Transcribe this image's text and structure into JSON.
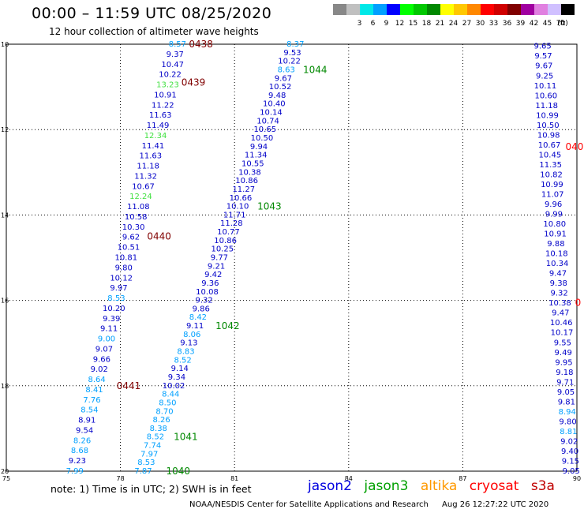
{
  "header": {
    "title": "00:00 – 11:59 UTC 08/25/2020",
    "subtitle": "12 hour collection of altimeter wave heights"
  },
  "color_scale": {
    "unit": "(ft)",
    "bins": [
      {
        "label": "",
        "color": "#888888"
      },
      {
        "label": "3",
        "color": "#c0c0c0"
      },
      {
        "label": "6",
        "color": "#00e8e8"
      },
      {
        "label": "9",
        "color": "#00a0ff"
      },
      {
        "label": "12",
        "color": "#0000ff"
      },
      {
        "label": "15",
        "color": "#00ff00"
      },
      {
        "label": "18",
        "color": "#00c800"
      },
      {
        "label": "21",
        "color": "#008800"
      },
      {
        "label": "24",
        "color": "#ffff00"
      },
      {
        "label": "27",
        "color": "#ffc800"
      },
      {
        "label": "30",
        "color": "#ff8800"
      },
      {
        "label": "33",
        "color": "#ff0000"
      },
      {
        "label": "36",
        "color": "#d00000"
      },
      {
        "label": "39",
        "color": "#800000"
      },
      {
        "label": "42",
        "color": "#a000a0"
      },
      {
        "label": "45",
        "color": "#e080e0"
      },
      {
        "label": "70",
        "color": "#d0c0ff"
      },
      {
        "label": "",
        "color": "#000000"
      }
    ]
  },
  "map": {
    "lon_ticks": [
      "75",
      "78",
      "81",
      "84",
      "87",
      "90"
    ],
    "lat_ticks": [
      "10",
      "12",
      "14",
      "16",
      "18",
      "20"
    ],
    "lon_range": [
      75,
      90
    ],
    "lat_range": [
      10,
      20
    ]
  },
  "passes": [
    {
      "id": "0438",
      "lon": 79.8,
      "lat": 10.0,
      "color": "#800000"
    },
    {
      "id": "0439",
      "lon": 79.6,
      "lat": 10.9,
      "color": "#800000"
    },
    {
      "id": "0440",
      "lon": 78.7,
      "lat": 14.5,
      "color": "#800000"
    },
    {
      "id": "0441",
      "lon": 77.9,
      "lat": 18.0,
      "color": "#800000"
    },
    {
      "id": "1044",
      "lon": 82.8,
      "lat": 10.6,
      "color": "#008800"
    },
    {
      "id": "1043",
      "lon": 81.6,
      "lat": 13.8,
      "color": "#008800"
    },
    {
      "id": "1042",
      "lon": 80.5,
      "lat": 16.6,
      "color": "#008800"
    },
    {
      "id": "1041",
      "lon": 79.4,
      "lat": 19.2,
      "color": "#008800"
    },
    {
      "id": "1040",
      "lon": 79.2,
      "lat": 20.0,
      "color": "#008800"
    },
    {
      "id": "040",
      "lon": 89.7,
      "lat": 12.4,
      "color": "#ff0000"
    },
    {
      "id": "0",
      "lon": 89.95,
      "lat": 16.05,
      "color": "#ff0000"
    }
  ],
  "tracks": [
    {
      "name": "track-0438-0441",
      "start": {
        "lon": 79.5,
        "lat": 10.0
      },
      "end": {
        "lon": 76.8,
        "lat": 20.0
      },
      "points": [
        {
          "v": "8.57",
          "c": "#00a0ff"
        },
        {
          "v": "9.37",
          "c": "#0000c8"
        },
        {
          "v": "10.47",
          "c": "#0000c8"
        },
        {
          "v": "10.22",
          "c": "#0000c8"
        },
        {
          "v": "13.23",
          "c": "#40e040"
        },
        {
          "v": "10.91",
          "c": "#0000c8"
        },
        {
          "v": "11.22",
          "c": "#0000c8"
        },
        {
          "v": "11.63",
          "c": "#0000c8"
        },
        {
          "v": "11.49",
          "c": "#0000c8"
        },
        {
          "v": "12.34",
          "c": "#40e040"
        },
        {
          "v": "11.41",
          "c": "#0000c8"
        },
        {
          "v": "11.63",
          "c": "#0000c8"
        },
        {
          "v": "11.18",
          "c": "#0000c8"
        },
        {
          "v": "11.32",
          "c": "#0000c8"
        },
        {
          "v": "10.67",
          "c": "#0000c8"
        },
        {
          "v": "12.24",
          "c": "#40e040"
        },
        {
          "v": "11.08",
          "c": "#0000c8"
        },
        {
          "v": "10.58",
          "c": "#0000c8"
        },
        {
          "v": "10.30",
          "c": "#0000c8"
        },
        {
          "v": "9.62",
          "c": "#0000c8"
        },
        {
          "v": "10.51",
          "c": "#0000c8"
        },
        {
          "v": "10.81",
          "c": "#0000c8"
        },
        {
          "v": "9.80",
          "c": "#0000c8"
        },
        {
          "v": "10.12",
          "c": "#0000c8"
        },
        {
          "v": "9.97",
          "c": "#0000c8"
        },
        {
          "v": "8.53",
          "c": "#00a0ff"
        },
        {
          "v": "10.20",
          "c": "#0000c8"
        },
        {
          "v": "9.39",
          "c": "#0000c8"
        },
        {
          "v": "9.11",
          "c": "#0000c8"
        },
        {
          "v": "9.00",
          "c": "#00a0ff"
        },
        {
          "v": "9.07",
          "c": "#0000c8"
        },
        {
          "v": "9.66",
          "c": "#0000c8"
        },
        {
          "v": "9.02",
          "c": "#0000c8"
        },
        {
          "v": "8.64",
          "c": "#00a0ff"
        },
        {
          "v": "8.41",
          "c": "#00a0ff"
        },
        {
          "v": "7.76",
          "c": "#00a0ff"
        },
        {
          "v": "8.54",
          "c": "#00a0ff"
        },
        {
          "v": "8.91",
          "c": "#0000c8"
        },
        {
          "v": "9.54",
          "c": "#0000c8"
        },
        {
          "v": "8.26",
          "c": "#00a0ff"
        },
        {
          "v": "8.68",
          "c": "#00a0ff"
        },
        {
          "v": "9.23",
          "c": "#0000c8"
        },
        {
          "v": "7.99",
          "c": "#00a0ff"
        }
      ]
    },
    {
      "name": "track-1044-1040",
      "start": {
        "lon": 82.6,
        "lat": 10.0
      },
      "end": {
        "lon": 78.6,
        "lat": 20.0
      },
      "points": [
        {
          "v": "8.37",
          "c": "#00a0ff"
        },
        {
          "v": "9.53",
          "c": "#0000c8"
        },
        {
          "v": "10.22",
          "c": "#0000c8"
        },
        {
          "v": "8.63",
          "c": "#00a0ff"
        },
        {
          "v": "9.67",
          "c": "#0000c8"
        },
        {
          "v": "10.52",
          "c": "#0000c8"
        },
        {
          "v": "9.48",
          "c": "#0000c8"
        },
        {
          "v": "10.40",
          "c": "#0000c8"
        },
        {
          "v": "10.14",
          "c": "#0000c8"
        },
        {
          "v": "10.74",
          "c": "#0000c8"
        },
        {
          "v": "10.65",
          "c": "#0000c8"
        },
        {
          "v": "10.50",
          "c": "#0000c8"
        },
        {
          "v": "9.94",
          "c": "#0000c8"
        },
        {
          "v": "11.34",
          "c": "#0000c8"
        },
        {
          "v": "10.55",
          "c": "#0000c8"
        },
        {
          "v": "10.38",
          "c": "#0000c8"
        },
        {
          "v": "10.86",
          "c": "#0000c8"
        },
        {
          "v": "11.27",
          "c": "#0000c8"
        },
        {
          "v": "10.66",
          "c": "#0000c8"
        },
        {
          "v": "10.10",
          "c": "#0000c8"
        },
        {
          "v": "11.71",
          "c": "#0000c8"
        },
        {
          "v": "11.28",
          "c": "#0000c8"
        },
        {
          "v": "10.77",
          "c": "#0000c8"
        },
        {
          "v": "10.86",
          "c": "#0000c8"
        },
        {
          "v": "10.25",
          "c": "#0000c8"
        },
        {
          "v": "9.77",
          "c": "#0000c8"
        },
        {
          "v": "9.21",
          "c": "#0000c8"
        },
        {
          "v": "9.42",
          "c": "#0000c8"
        },
        {
          "v": "9.36",
          "c": "#0000c8"
        },
        {
          "v": "10.08",
          "c": "#0000c8"
        },
        {
          "v": "9.32",
          "c": "#0000c8"
        },
        {
          "v": "9.86",
          "c": "#0000c8"
        },
        {
          "v": "8.42",
          "c": "#00a0ff"
        },
        {
          "v": "9.11",
          "c": "#0000c8"
        },
        {
          "v": "8.06",
          "c": "#00a0ff"
        },
        {
          "v": "9.13",
          "c": "#0000c8"
        },
        {
          "v": "8.83",
          "c": "#00a0ff"
        },
        {
          "v": "8.52",
          "c": "#00a0ff"
        },
        {
          "v": "9.14",
          "c": "#0000c8"
        },
        {
          "v": "9.34",
          "c": "#0000c8"
        },
        {
          "v": "10.02",
          "c": "#0000c8"
        },
        {
          "v": "8.44",
          "c": "#00a0ff"
        },
        {
          "v": "8.50",
          "c": "#00a0ff"
        },
        {
          "v": "8.70",
          "c": "#00a0ff"
        },
        {
          "v": "8.26",
          "c": "#00a0ff"
        },
        {
          "v": "8.38",
          "c": "#00a0ff"
        },
        {
          "v": "8.52",
          "c": "#00a0ff"
        },
        {
          "v": "7.74",
          "c": "#00a0ff"
        },
        {
          "v": "7.97",
          "c": "#00a0ff"
        },
        {
          "v": "8.53",
          "c": "#00a0ff"
        },
        {
          "v": "7.87",
          "c": "#00a0ff"
        }
      ]
    },
    {
      "name": "track-east",
      "start": {
        "lon": 89.1,
        "lat": 10.05
      },
      "end": {
        "lon": 89.85,
        "lat": 20.0
      },
      "points": [
        {
          "v": "9.65",
          "c": "#0000c8"
        },
        {
          "v": "9.57",
          "c": "#0000c8"
        },
        {
          "v": "9.67",
          "c": "#0000c8"
        },
        {
          "v": "9.25",
          "c": "#0000c8"
        },
        {
          "v": "10.11",
          "c": "#0000c8"
        },
        {
          "v": "10.60",
          "c": "#0000c8"
        },
        {
          "v": "11.18",
          "c": "#0000c8"
        },
        {
          "v": "10.99",
          "c": "#0000c8"
        },
        {
          "v": "10.50",
          "c": "#0000c8"
        },
        {
          "v": "10.98",
          "c": "#0000c8"
        },
        {
          "v": "10.67",
          "c": "#0000c8"
        },
        {
          "v": "10.45",
          "c": "#0000c8"
        },
        {
          "v": "11.35",
          "c": "#0000c8"
        },
        {
          "v": "10.82",
          "c": "#0000c8"
        },
        {
          "v": "10.99",
          "c": "#0000c8"
        },
        {
          "v": "11.07",
          "c": "#0000c8"
        },
        {
          "v": "9.96",
          "c": "#0000c8"
        },
        {
          "v": "9.99",
          "c": "#0000c8"
        },
        {
          "v": "10.80",
          "c": "#0000c8"
        },
        {
          "v": "10.91",
          "c": "#0000c8"
        },
        {
          "v": "9.88",
          "c": "#0000c8"
        },
        {
          "v": "10.18",
          "c": "#0000c8"
        },
        {
          "v": "10.34",
          "c": "#0000c8"
        },
        {
          "v": "9.47",
          "c": "#0000c8"
        },
        {
          "v": "9.38",
          "c": "#0000c8"
        },
        {
          "v": "9.32",
          "c": "#0000c8"
        },
        {
          "v": "10.38",
          "c": "#0000c8"
        },
        {
          "v": "9.47",
          "c": "#0000c8"
        },
        {
          "v": "10.46",
          "c": "#0000c8"
        },
        {
          "v": "10.17",
          "c": "#0000c8"
        },
        {
          "v": "9.55",
          "c": "#0000c8"
        },
        {
          "v": "9.49",
          "c": "#0000c8"
        },
        {
          "v": "9.95",
          "c": "#0000c8"
        },
        {
          "v": "9.18",
          "c": "#0000c8"
        },
        {
          "v": "9.71",
          "c": "#0000c8"
        },
        {
          "v": "9.05",
          "c": "#0000c8"
        },
        {
          "v": "9.81",
          "c": "#0000c8"
        },
        {
          "v": "8.94",
          "c": "#00a0ff"
        },
        {
          "v": "9.80",
          "c": "#0000c8"
        },
        {
          "v": "8.81",
          "c": "#00a0ff"
        },
        {
          "v": "9.02",
          "c": "#0000c8"
        },
        {
          "v": "9.40",
          "c": "#0000c8"
        },
        {
          "v": "9.15",
          "c": "#0000c8"
        },
        {
          "v": "9.05",
          "c": "#0000c8"
        }
      ]
    }
  ],
  "note": "note: 1) Time is in UTC; 2) SWH is in feet",
  "legend": [
    {
      "label": "jason2",
      "color": "#0000e0"
    },
    {
      "label": "jason3",
      "color": "#00a000"
    },
    {
      "label": "altika",
      "color": "#ff9900"
    },
    {
      "label": "cryosat",
      "color": "#ff0000"
    },
    {
      "label": "s3a",
      "color": "#c00000"
    }
  ],
  "footer": {
    "credit": "NOAA/NESDIS Center for Satellite Applications and Research",
    "timestamp": "Aug 26 12:27:22 UTC 2020"
  }
}
